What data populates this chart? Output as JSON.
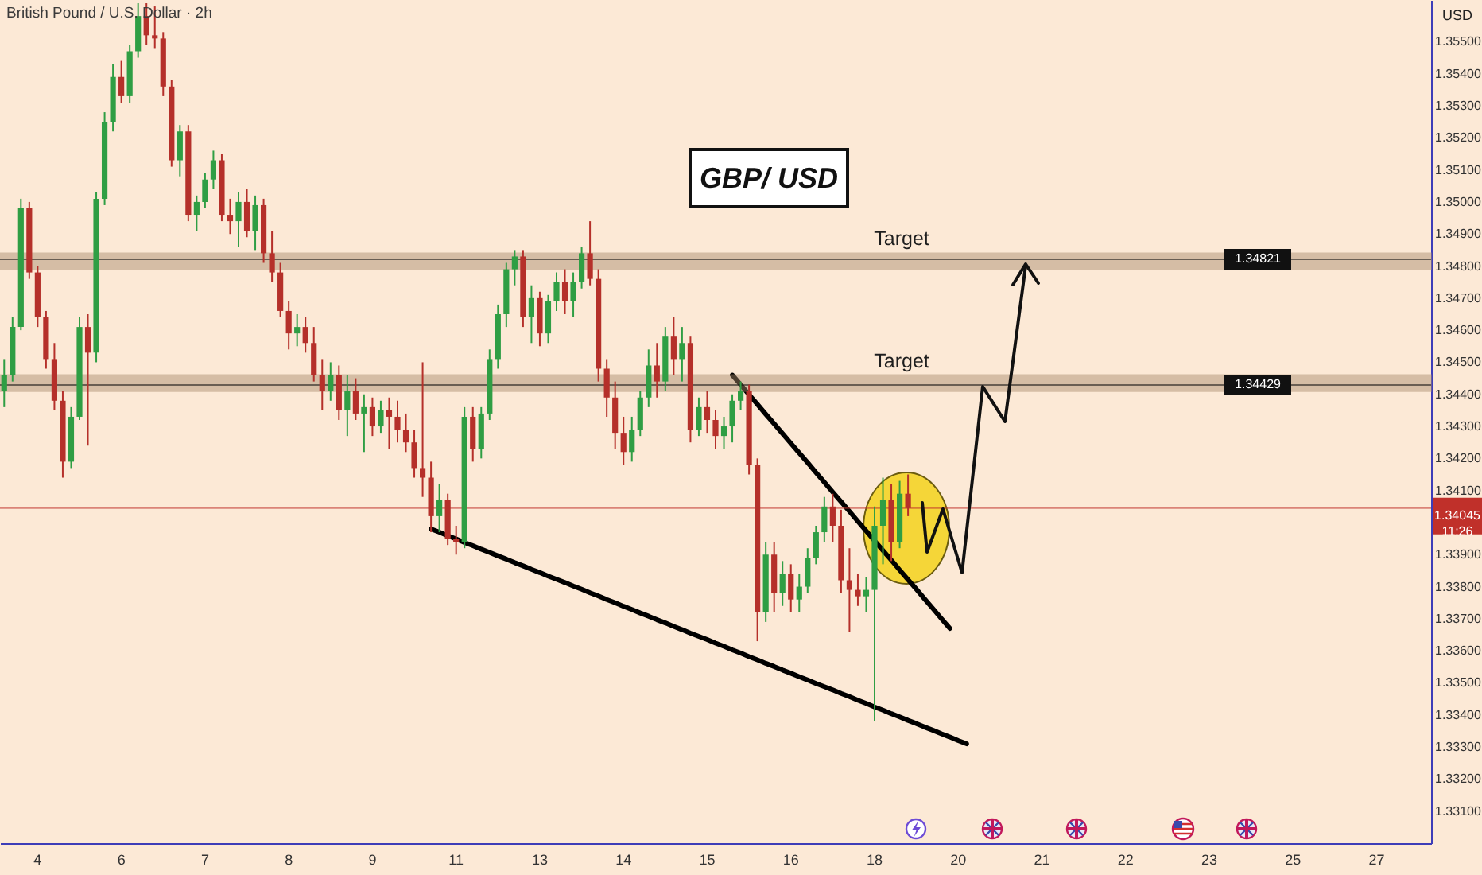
{
  "chart_data": {
    "type": "candlestick",
    "title": "GBP/ USD",
    "subtitle": "British Pound / U.S. Dollar · 2h",
    "ylabel": "USD",
    "categories": [
      null,
      null,
      null,
      null,
      "4",
      null,
      null,
      null,
      null,
      null,
      null,
      null,
      null,
      null,
      "6",
      null,
      null,
      null,
      null,
      null,
      null,
      null,
      null,
      null,
      "7",
      null,
      null,
      null,
      null,
      null,
      null,
      null,
      null,
      null,
      "8",
      null,
      null,
      null,
      null,
      null,
      null,
      null,
      null,
      null,
      "9",
      null,
      null,
      null,
      null,
      null,
      null,
      null,
      null,
      null,
      "11",
      null,
      null,
      null,
      null,
      null,
      null,
      null,
      null,
      null,
      "13",
      null,
      null,
      null,
      null,
      null,
      null,
      null,
      null,
      null,
      "14",
      null,
      null,
      null,
      null,
      null,
      null,
      null,
      null,
      null,
      "15",
      null,
      null,
      null,
      null,
      null,
      null,
      null,
      null,
      null,
      "16",
      null,
      null,
      null,
      null,
      null,
      null,
      null,
      null,
      null,
      "18",
      null,
      null,
      null,
      null,
      null,
      null,
      null,
      null,
      null,
      "20",
      null,
      null,
      null,
      null,
      null,
      null,
      null,
      null,
      null,
      "21",
      null,
      null,
      null,
      null,
      null,
      null,
      null,
      null,
      null,
      "22",
      null,
      null,
      null,
      null,
      null,
      null,
      null,
      null,
      null,
      "23",
      null,
      null,
      null,
      null,
      null,
      null,
      null,
      null,
      null,
      "25",
      null,
      null,
      null,
      null,
      null,
      null,
      null,
      null,
      null,
      "27",
      null,
      null,
      null,
      null,
      null,
      null
    ],
    "ohlc": [
      [
        1.3441,
        1.3451,
        1.3436,
        1.3446
      ],
      [
        1.3446,
        1.3464,
        1.3444,
        1.3461
      ],
      [
        1.3461,
        1.3501,
        1.346,
        1.3498
      ],
      [
        1.3498,
        1.35,
        1.3476,
        1.3478
      ],
      [
        1.3478,
        1.348,
        1.3461,
        1.3464
      ],
      [
        1.3464,
        1.3466,
        1.3448,
        1.3451
      ],
      [
        1.3451,
        1.3456,
        1.3435,
        1.3438
      ],
      [
        1.3438,
        1.3441,
        1.3414,
        1.3419
      ],
      [
        1.3419,
        1.3436,
        1.3417,
        1.3433
      ],
      [
        1.3433,
        1.3464,
        1.3432,
        1.3461
      ],
      [
        1.3461,
        1.3465,
        1.3424,
        1.3453
      ],
      [
        1.3453,
        1.3503,
        1.345,
        1.3501
      ],
      [
        1.3501,
        1.3528,
        1.3499,
        1.3525
      ],
      [
        1.3525,
        1.3543,
        1.3522,
        1.3539
      ],
      [
        1.3539,
        1.3544,
        1.3531,
        1.3533
      ],
      [
        1.3533,
        1.3549,
        1.3531,
        1.3547
      ],
      [
        1.3547,
        1.3562,
        1.3545,
        1.3558
      ],
      [
        1.3558,
        1.3562,
        1.3549,
        1.3552
      ],
      [
        1.3552,
        1.3561,
        1.3548,
        1.3551
      ],
      [
        1.3551,
        1.3553,
        1.3533,
        1.3536
      ],
      [
        1.3536,
        1.3538,
        1.3511,
        1.3513
      ],
      [
        1.3513,
        1.3524,
        1.3508,
        1.3522
      ],
      [
        1.3522,
        1.3524,
        1.3494,
        1.3496
      ],
      [
        1.3496,
        1.3502,
        1.3491,
        1.35
      ],
      [
        1.35,
        1.3509,
        1.3498,
        1.3507
      ],
      [
        1.3507,
        1.3516,
        1.3504,
        1.3513
      ],
      [
        1.3513,
        1.3515,
        1.3494,
        1.3496
      ],
      [
        1.3496,
        1.3501,
        1.349,
        1.3494
      ],
      [
        1.3494,
        1.3503,
        1.3486,
        1.35
      ],
      [
        1.35,
        1.3504,
        1.3489,
        1.3491
      ],
      [
        1.3491,
        1.3502,
        1.3485,
        1.3499
      ],
      [
        1.3499,
        1.3501,
        1.3481,
        1.3484
      ],
      [
        1.3484,
        1.3491,
        1.3475,
        1.3478
      ],
      [
        1.3478,
        1.3481,
        1.3464,
        1.3466
      ],
      [
        1.3466,
        1.3469,
        1.3454,
        1.3459
      ],
      [
        1.3459,
        1.3465,
        1.3455,
        1.3461
      ],
      [
        1.3461,
        1.3464,
        1.3453,
        1.3456
      ],
      [
        1.3456,
        1.3461,
        1.3444,
        1.3446
      ],
      [
        1.3446,
        1.3451,
        1.3435,
        1.3441
      ],
      [
        1.3441,
        1.345,
        1.3438,
        1.3446
      ],
      [
        1.3446,
        1.3449,
        1.3432,
        1.3435
      ],
      [
        1.3435,
        1.3446,
        1.3427,
        1.3441
      ],
      [
        1.3441,
        1.3445,
        1.3432,
        1.3434
      ],
      [
        1.3434,
        1.344,
        1.3422,
        1.3436
      ],
      [
        1.3436,
        1.3439,
        1.3427,
        1.343
      ],
      [
        1.343,
        1.3438,
        1.3428,
        1.3435
      ],
      [
        1.3435,
        1.3439,
        1.3423,
        1.3433
      ],
      [
        1.3433,
        1.3438,
        1.3425,
        1.3429
      ],
      [
        1.3429,
        1.3434,
        1.3422,
        1.3425
      ],
      [
        1.3425,
        1.3429,
        1.3414,
        1.3417
      ],
      [
        1.3417,
        1.345,
        1.3408,
        1.3414
      ],
      [
        1.3414,
        1.3419,
        1.3397,
        1.3402
      ],
      [
        1.3402,
        1.3412,
        1.3397,
        1.3407
      ],
      [
        1.3407,
        1.3409,
        1.3393,
        1.3395
      ],
      [
        1.3395,
        1.3399,
        1.339,
        1.3394
      ],
      [
        1.3394,
        1.3436,
        1.3392,
        1.3433
      ],
      [
        1.3433,
        1.3436,
        1.3419,
        1.3423
      ],
      [
        1.3423,
        1.3436,
        1.342,
        1.3434
      ],
      [
        1.3434,
        1.3454,
        1.3432,
        1.3451
      ],
      [
        1.3451,
        1.3468,
        1.3448,
        1.3465
      ],
      [
        1.3465,
        1.3481,
        1.3461,
        1.3479
      ],
      [
        1.3479,
        1.3485,
        1.3474,
        1.3483
      ],
      [
        1.3483,
        1.3485,
        1.3461,
        1.3464
      ],
      [
        1.3464,
        1.3474,
        1.3456,
        1.347
      ],
      [
        1.347,
        1.3472,
        1.3455,
        1.3459
      ],
      [
        1.3459,
        1.3471,
        1.3456,
        1.3469
      ],
      [
        1.3469,
        1.3478,
        1.3466,
        1.3475
      ],
      [
        1.3475,
        1.3479,
        1.3465,
        1.3469
      ],
      [
        1.3469,
        1.3478,
        1.3464,
        1.3475
      ],
      [
        1.3475,
        1.3486,
        1.3473,
        1.3484
      ],
      [
        1.3484,
        1.3494,
        1.3474,
        1.3476
      ],
      [
        1.3476,
        1.3479,
        1.3444,
        1.3448
      ],
      [
        1.3448,
        1.3451,
        1.3433,
        1.3439
      ],
      [
        1.3439,
        1.3444,
        1.3423,
        1.3428
      ],
      [
        1.3428,
        1.3433,
        1.3418,
        1.3422
      ],
      [
        1.3422,
        1.3433,
        1.3419,
        1.3429
      ],
      [
        1.3429,
        1.3441,
        1.3427,
        1.3439
      ],
      [
        1.3439,
        1.3454,
        1.3436,
        1.3449
      ],
      [
        1.3449,
        1.3456,
        1.3439,
        1.3444
      ],
      [
        1.3444,
        1.3461,
        1.3441,
        1.3458
      ],
      [
        1.3458,
        1.3464,
        1.3446,
        1.3451
      ],
      [
        1.3451,
        1.3461,
        1.3444,
        1.3456
      ],
      [
        1.3456,
        1.3458,
        1.3425,
        1.3429
      ],
      [
        1.3429,
        1.3439,
        1.3427,
        1.3436
      ],
      [
        1.3436,
        1.3441,
        1.3428,
        1.3432
      ],
      [
        1.3432,
        1.3435,
        1.3423,
        1.3427
      ],
      [
        1.3427,
        1.3433,
        1.3423,
        1.343
      ],
      [
        1.343,
        1.344,
        1.3425,
        1.3438
      ],
      [
        1.3438,
        1.3444,
        1.3435,
        1.3441
      ],
      [
        1.3441,
        1.3443,
        1.3415,
        1.3418
      ],
      [
        1.3418,
        1.342,
        1.3363,
        1.3372
      ],
      [
        1.3372,
        1.3394,
        1.3369,
        1.339
      ],
      [
        1.339,
        1.3394,
        1.3372,
        1.3378
      ],
      [
        1.3378,
        1.3388,
        1.3374,
        1.3384
      ],
      [
        1.3384,
        1.3387,
        1.3372,
        1.3376
      ],
      [
        1.3376,
        1.3384,
        1.3372,
        1.338
      ],
      [
        1.338,
        1.3392,
        1.3378,
        1.3389
      ],
      [
        1.3389,
        1.3399,
        1.3387,
        1.3397
      ],
      [
        1.3397,
        1.3408,
        1.3394,
        1.3405
      ],
      [
        1.3405,
        1.3409,
        1.3394,
        1.3399
      ],
      [
        1.3399,
        1.3404,
        1.3378,
        1.3382
      ],
      [
        1.3382,
        1.3392,
        1.3366,
        1.3379
      ],
      [
        1.3379,
        1.3384,
        1.3374,
        1.3377
      ],
      [
        1.3377,
        1.3383,
        1.3372,
        1.3379
      ],
      [
        1.3379,
        1.3405,
        1.3338,
        1.3399
      ],
      [
        1.3399,
        1.3414,
        1.3387,
        1.3407
      ],
      [
        1.3407,
        1.3412,
        1.3388,
        1.3394
      ],
      [
        1.3394,
        1.3413,
        1.3392,
        1.3409
      ],
      [
        1.3409,
        1.3415,
        1.3402,
        1.34045
      ],
      null,
      null,
      null,
      null,
      null,
      null,
      null,
      null,
      null,
      null,
      null,
      null,
      null,
      null,
      null,
      null,
      null,
      null,
      null,
      null,
      null,
      null,
      null,
      null,
      null,
      null,
      null,
      null,
      null,
      null,
      null,
      null,
      null,
      null,
      null,
      null,
      null,
      null,
      null,
      null,
      null,
      null,
      null,
      null,
      null,
      null,
      null,
      null,
      null,
      null,
      null,
      null,
      null,
      null,
      null,
      null,
      null,
      null,
      null,
      null,
      null,
      null
    ],
    "colors": [
      "#2f9e44",
      "#2f9e44",
      "#2f9e44",
      "#b5302a",
      "#b5302a",
      "#b5302a",
      "#b5302a",
      "#b5302a",
      "#2f9e44",
      "#2f9e44",
      "#b5302a",
      "#2f9e44",
      "#2f9e44",
      "#2f9e44",
      "#b5302a",
      "#2f9e44",
      "#2f9e44",
      "#b5302a",
      "#b5302a",
      "#b5302a",
      "#b5302a",
      "#2f9e44",
      "#b5302a",
      "#2f9e44",
      "#2f9e44",
      "#2f9e44",
      "#b5302a",
      "#b5302a",
      "#2f9e44",
      "#b5302a",
      "#2f9e44",
      "#b5302a",
      "#b5302a",
      "#b5302a",
      "#b5302a",
      "#2f9e44",
      "#b5302a",
      "#b5302a",
      "#b5302a",
      "#2f9e44",
      "#b5302a",
      "#2f9e44",
      "#b5302a",
      "#2f9e44",
      "#b5302a",
      "#2f9e44",
      "#b5302a",
      "#b5302a",
      "#b5302a",
      "#b5302a",
      "#b5302a",
      "#b5302a",
      "#2f9e44",
      "#b5302a",
      "#b5302a",
      "#2f9e44",
      "#b5302a",
      "#2f9e44",
      "#2f9e44",
      "#2f9e44",
      "#2f9e44",
      "#2f9e44",
      "#b5302a",
      "#2f9e44",
      "#b5302a",
      "#2f9e44",
      "#2f9e44",
      "#b5302a",
      "#2f9e44",
      "#2f9e44",
      "#b5302a",
      "#b5302a",
      "#b5302a",
      "#b5302a",
      "#b5302a",
      "#2f9e44",
      "#2f9e44",
      "#2f9e44",
      "#b5302a",
      "#2f9e44",
      "#b5302a",
      "#2f9e44",
      "#b5302a",
      "#2f9e44",
      "#b5302a",
      "#b5302a",
      "#2f9e44",
      "#2f9e44",
      "#2f9e44",
      "#b5302a",
      "#b5302a",
      "#2f9e44",
      "#b5302a",
      "#2f9e44",
      "#b5302a",
      "#2f9e44",
      "#2f9e44",
      "#2f9e44",
      "#2f9e44",
      "#b5302a",
      "#b5302a",
      "#b5302a",
      "#b5302a",
      "#2f9e44",
      "#2f9e44",
      "#2f9e44",
      "#b5302a",
      "#2f9e44",
      "#b5302a",
      null,
      null,
      null,
      null,
      null,
      null,
      null,
      null,
      null,
      null,
      null,
      null,
      null,
      null,
      null,
      null,
      null,
      null,
      null,
      null,
      null,
      null,
      null,
      null,
      null,
      null,
      null,
      null,
      null,
      null,
      null,
      null,
      null,
      null,
      null,
      null,
      null,
      null,
      null,
      null,
      null,
      null,
      null,
      null,
      null,
      null,
      null,
      null,
      null,
      null,
      null,
      null,
      null,
      null,
      null,
      null,
      null,
      null,
      null,
      null,
      null,
      null
    ],
    "series": [
      {
        "type": "line",
        "color": "#000000",
        "values": [
          null,
          null,
          null,
          null,
          null,
          null,
          null,
          null,
          null,
          null,
          null,
          null,
          null,
          null,
          null,
          null,
          null,
          null,
          null,
          null,
          null,
          null,
          null,
          null,
          null,
          null,
          null,
          null,
          null,
          null,
          null,
          null,
          null,
          null,
          null,
          null,
          null,
          null,
          null,
          null,
          null,
          null,
          null,
          null,
          null,
          null,
          null,
          null,
          null,
          null,
          null,
          1.3398,
          1.3397,
          1.33959,
          1.33949,
          1.33938,
          1.33928,
          1.33917,
          1.33907,
          1.33896,
          1.33886,
          1.33875,
          1.33865,
          1.33854,
          1.33844,
          1.33833,
          1.33823,
          1.33813,
          1.33802,
          1.33792,
          1.33781,
          1.33771,
          1.3376,
          1.3375,
          1.33739,
          1.33729,
          1.33718,
          1.33708,
          1.33697,
          1.33687,
          1.33676,
          1.33666,
          1.33655,
          1.33645,
          1.33635,
          1.33624,
          1.33614,
          1.33603,
          1.33593,
          1.33582,
          1.33572,
          1.33561,
          1.33551,
          1.3354,
          1.3353,
          1.33519,
          1.33509,
          1.33498,
          1.33488,
          1.33478,
          1.33467,
          1.33457,
          1.33446,
          1.33436,
          1.33425,
          1.33415,
          1.33404,
          1.33394,
          1.33383,
          1.33373,
          1.33362,
          1.33352,
          1.33341,
          1.33331,
          1.3332,
          1.3331,
          null,
          null,
          null,
          null,
          null,
          null,
          null,
          null,
          null,
          null,
          null,
          null,
          null,
          null,
          null,
          null,
          null,
          null,
          null,
          null,
          null,
          null,
          null,
          null,
          null,
          null,
          null,
          null,
          null,
          null,
          null,
          null,
          null,
          null,
          null,
          null,
          null,
          null,
          null,
          null,
          null,
          null,
          null,
          null,
          null,
          null,
          null,
          null,
          null,
          null,
          null,
          null,
          null,
          null,
          null
        ]
      },
      {
        "type": "line",
        "color": "#000000",
        "values": [
          null,
          null,
          null,
          null,
          null,
          null,
          null,
          null,
          null,
          null,
          null,
          null,
          null,
          null,
          null,
          null,
          null,
          null,
          null,
          null,
          null,
          null,
          null,
          null,
          null,
          null,
          null,
          null,
          null,
          null,
          null,
          null,
          null,
          null,
          null,
          null,
          null,
          null,
          null,
          null,
          null,
          null,
          null,
          null,
          null,
          null,
          null,
          null,
          null,
          null,
          null,
          null,
          null,
          null,
          null,
          null,
          null,
          null,
          null,
          null,
          null,
          null,
          null,
          null,
          null,
          null,
          null,
          null,
          null,
          null,
          null,
          null,
          null,
          null,
          null,
          null,
          null,
          null,
          null,
          null,
          null,
          null,
          null,
          null,
          null,
          null,
          null,
          1.3446,
          1.3443,
          1.34399,
          1.34369,
          1.34338,
          1.34308,
          1.34278,
          1.34247,
          1.34217,
          1.34187,
          1.34156,
          1.34126,
          1.34095,
          1.34065,
          1.34035,
          1.34004,
          1.33974,
          1.33943,
          1.33913,
          1.33883,
          1.33852,
          1.33822,
          1.33792,
          1.33761,
          1.33731,
          1.337,
          1.3367,
          null,
          null,
          null,
          null,
          null,
          null,
          null,
          null,
          null,
          null,
          null,
          null,
          null,
          null,
          null,
          null,
          null,
          null,
          null,
          null,
          null,
          null,
          null,
          null,
          null,
          null,
          null,
          null,
          null,
          null,
          null,
          null,
          null,
          null,
          null,
          null,
          null,
          null,
          null,
          null,
          null,
          null,
          null,
          null,
          null,
          null,
          null,
          null,
          null,
          null,
          null,
          null,
          null,
          null,
          null,
          null,
          null
        ]
      }
    ],
    "ylim": [
      1.33,
      1.3563
    ],
    "yticks": [
      {
        "value": 1.331,
        "label": "1.33100"
      },
      {
        "value": 1.332,
        "label": "1.33200"
      },
      {
        "value": 1.333,
        "label": "1.33300"
      },
      {
        "value": 1.334,
        "label": "1.33400"
      },
      {
        "value": 1.335,
        "label": "1.33500"
      },
      {
        "value": 1.336,
        "label": "1.33600"
      },
      {
        "value": 1.337,
        "label": "1.33700"
      },
      {
        "value": 1.338,
        "label": "1.33800"
      },
      {
        "value": 1.339,
        "label": "1.33900"
      },
      {
        "value": 1.341,
        "label": "1.34100"
      },
      {
        "value": 1.342,
        "label": "1.34200"
      },
      {
        "value": 1.343,
        "label": "1.34300"
      },
      {
        "value": 1.344,
        "label": "1.34400"
      },
      {
        "value": 1.345,
        "label": "1.34500"
      },
      {
        "value": 1.346,
        "label": "1.34600"
      },
      {
        "value": 1.347,
        "label": "1.34700"
      },
      {
        "value": 1.348,
        "label": "1.34800"
      },
      {
        "value": 1.349,
        "label": "1.34900"
      },
      {
        "value": 1.35,
        "label": "1.35000"
      },
      {
        "value": 1.351,
        "label": "1.35100"
      },
      {
        "value": 1.352,
        "label": "1.35200"
      },
      {
        "value": 1.353,
        "label": "1.35300"
      },
      {
        "value": 1.354,
        "label": "1.35400"
      },
      {
        "value": 1.355,
        "label": "1.35500"
      }
    ],
    "bands": [
      {
        "axis": "y",
        "from": 1.3479,
        "to": 1.3484,
        "label": "Target",
        "color": "#a8896c"
      },
      {
        "axis": "y",
        "from": 1.3441,
        "to": 1.3446,
        "label": "Target",
        "color": "#a8896c"
      }
    ],
    "ref_lines": [
      {
        "axis": "y",
        "value": 1.34821,
        "label": "1.34821",
        "color": "#111111"
      },
      {
        "axis": "y",
        "value": 1.34429,
        "label": "1.34429",
        "color": "#111111"
      },
      {
        "axis": "y",
        "value": 1.34045,
        "label": "1.34045\n11:26",
        "color": "#c0302a"
      }
    ]
  }
}
